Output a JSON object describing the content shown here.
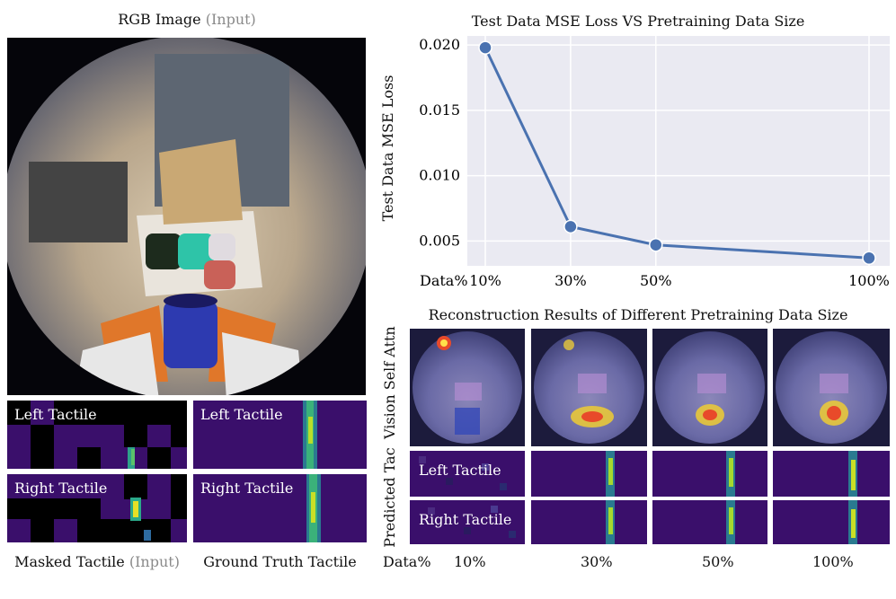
{
  "left": {
    "rgb_title": "RGB Image",
    "rgb_title_suffix": "(Input)",
    "masked_caption": "Masked Tactile",
    "masked_caption_suffix": "(Input)",
    "gt_caption": "Ground Truth Tactile",
    "left_tactile": "Left Tactile",
    "right_tactile": "Right Tactile"
  },
  "chart_data": {
    "type": "line",
    "title": "Test Data MSE Loss VS Pretraining Data Size",
    "xlabel": "Data%",
    "ylabel": "Test Data MSE Loss",
    "x": [
      10,
      30,
      50,
      100
    ],
    "x_tick_labels": [
      "10%",
      "30%",
      "50%",
      "100%"
    ],
    "y_ticks": [
      0.005,
      0.01,
      0.015,
      0.02
    ],
    "y_tick_labels": [
      "0.005",
      "0.010",
      "0.015",
      "0.020"
    ],
    "ylim": [
      0.0031,
      0.0207
    ],
    "series": [
      {
        "name": "Test Data MSE Loss",
        "values": [
          0.0198,
          0.0061,
          0.0047,
          0.0037
        ],
        "color": "#4a72b0"
      }
    ],
    "grid": true
  },
  "recon": {
    "title": "Reconstruction Results of Different Pretraining Data Size",
    "row_vision": "Vision Self Attn",
    "row_pred": "Predicted Tac",
    "left_tactile": "Left Tactile",
    "right_tactile": "Right Tactile",
    "data_label": "Data%",
    "columns": [
      "10%",
      "30%",
      "50%",
      "100%"
    ]
  },
  "colors": {
    "panel": "#3a0f6b",
    "line": "#4a72b0",
    "grid_bg": "#eaeaf2"
  }
}
